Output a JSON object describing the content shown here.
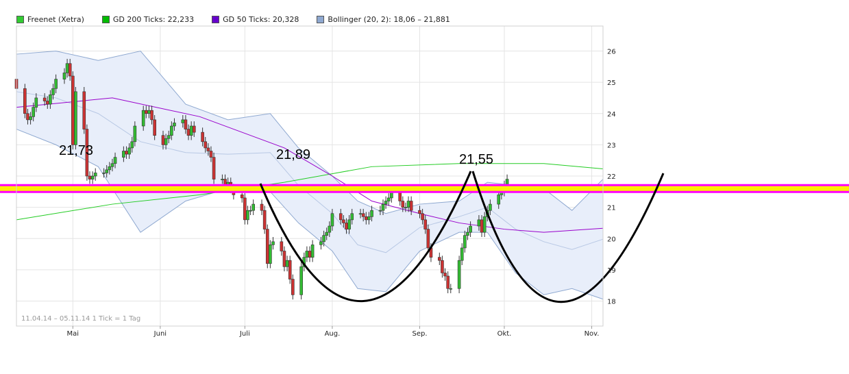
{
  "legend": {
    "items": [
      {
        "label": "Freenet (Xetra)",
        "color": "#33cc33"
      },
      {
        "label": "GD 200 Ticks: 22,233",
        "color": "#00bb00"
      },
      {
        "label": "GD 50 Ticks: 20,328",
        "color": "#6600cc"
      },
      {
        "label": "Bollinger (20, 2): 18,06 – 21,881",
        "color": "#8ea8d0"
      }
    ]
  },
  "footer": "11.04.14 – 05.11.14   1 Tick = 1 Tag",
  "annotations": [
    "21,73",
    "21,89",
    "21,55"
  ],
  "chart_data": {
    "type": "candlestick",
    "x_range": [
      "2014-04-11",
      "2014-11-05"
    ],
    "ylim": [
      17.2,
      26.8
    ],
    "y_ticks": [
      18,
      19,
      20,
      21,
      22,
      23,
      24,
      25,
      26
    ],
    "y_tick_labels": [
      "18",
      "19",
      "20",
      "21",
      "22",
      "23",
      "24",
      "25",
      "26"
    ],
    "x_ticks": [
      {
        "label": "Mai",
        "date": "2014-05-01"
      },
      {
        "label": "Juni",
        "date": "2014-06-01"
      },
      {
        "label": "Juli",
        "date": "2014-07-01"
      },
      {
        "label": "Aug.",
        "date": "2014-08-01"
      },
      {
        "label": "Sep.",
        "date": "2014-09-01"
      },
      {
        "label": "Okt.",
        "date": "2014-10-01"
      },
      {
        "label": "Nov.",
        "date": "2014-11-01"
      }
    ],
    "grid": true,
    "close": [
      24.8,
      24.0,
      23.8,
      23.9,
      24.2,
      24.5,
      24.4,
      24.3,
      24.6,
      24.8,
      25.1,
      25.3,
      25.6,
      25.2,
      23.0,
      24.7,
      23.5,
      22.0,
      21.9,
      22.0,
      22.1,
      22.1,
      22.2,
      22.3,
      22.4,
      22.6,
      22.8,
      22.7,
      22.9,
      23.1,
      23.6,
      24.1,
      24.0,
      24.1,
      23.8,
      23.3,
      23.0,
      23.2,
      23.3,
      23.6,
      23.7,
      23.8,
      23.5,
      23.3,
      23.6,
      23.4,
      23.1,
      22.9,
      22.8,
      22.6,
      21.9,
      21.9,
      21.7,
      21.8,
      21.6,
      21.4,
      21.3,
      20.6,
      20.9,
      20.9,
      21.1,
      20.9,
      20.3,
      19.2,
      19.8,
      19.9,
      19.6,
      19.1,
      19.3,
      18.7,
      18.2,
      19.1,
      19.4,
      19.6,
      19.4,
      19.8,
      19.9,
      20.1,
      20.2,
      20.4,
      20.8,
      20.6,
      20.5,
      20.3,
      20.6,
      20.8,
      20.8,
      20.7,
      20.6,
      20.7,
      20.9,
      20.9,
      21.1,
      21.2,
      21.3,
      21.5,
      21.2,
      21.0,
      21.0,
      21.2,
      20.9,
      20.8,
      20.6,
      20.3,
      19.7,
      19.4,
      19.3,
      18.9,
      18.8,
      18.4,
      18.4,
      19.3,
      19.7,
      20.1,
      20.2,
      20.4,
      20.6,
      20.2,
      20.7,
      20.9,
      21.1,
      21.4,
      21.5,
      21.7,
      21.9
    ],
    "gd200": {
      "x": [
        "2014-04-11",
        "2014-05-15",
        "2014-06-15",
        "2014-07-15",
        "2014-08-15",
        "2014-09-15",
        "2014-10-15",
        "2014-11-05"
      ],
      "y": [
        20.6,
        21.1,
        21.4,
        21.8,
        22.3,
        22.4,
        22.4,
        22.23
      ]
    },
    "gd50": {
      "x": [
        "2014-04-11",
        "2014-05-15",
        "2014-06-15",
        "2014-07-15",
        "2014-08-01",
        "2014-08-15",
        "2014-09-01",
        "2014-09-15",
        "2014-10-01",
        "2014-10-15",
        "2014-11-05"
      ],
      "y": [
        24.2,
        24.5,
        23.9,
        22.9,
        22.0,
        21.2,
        20.8,
        20.5,
        20.3,
        20.2,
        20.33
      ]
    },
    "bollinger": {
      "x": [
        "2014-04-11",
        "2014-04-25",
        "2014-05-10",
        "2014-05-25",
        "2014-06-10",
        "2014-06-25",
        "2014-07-10",
        "2014-07-20",
        "2014-08-01",
        "2014-08-10",
        "2014-08-20",
        "2014-09-01",
        "2014-09-15",
        "2014-09-25",
        "2014-10-05",
        "2014-10-15",
        "2014-10-25",
        "2014-11-05"
      ],
      "upper": [
        25.9,
        26.0,
        25.7,
        26.0,
        24.3,
        23.8,
        24.0,
        22.9,
        22.0,
        21.2,
        20.8,
        21.1,
        21.2,
        21.8,
        21.7,
        21.6,
        20.9,
        21.9
      ],
      "lower": [
        23.5,
        23.0,
        22.3,
        20.2,
        21.2,
        21.6,
        21.5,
        20.5,
        19.6,
        18.4,
        18.3,
        19.6,
        20.2,
        20.2,
        18.9,
        18.2,
        18.4,
        18.06
      ]
    },
    "horizontal_lines": [
      21.6
    ],
    "shapes": [
      "left-cup",
      "right-cup"
    ]
  }
}
